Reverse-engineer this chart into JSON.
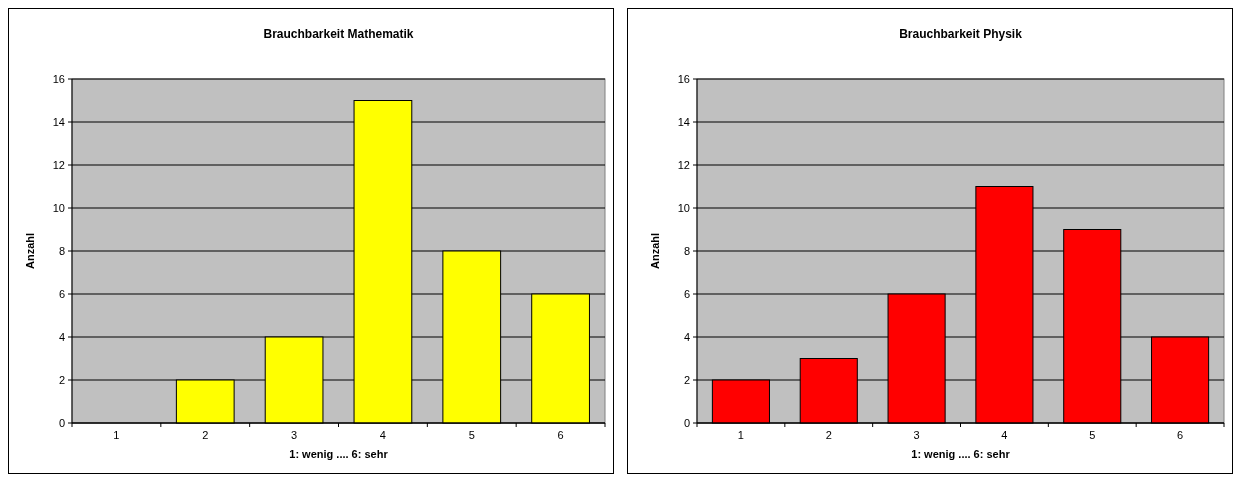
{
  "chart_data": [
    {
      "type": "bar",
      "title": "Brauchbarkeit Mathematik",
      "xlabel": "1: wenig .... 6: sehr",
      "ylabel": "Anzahl",
      "categories": [
        "1",
        "2",
        "3",
        "4",
        "5",
        "6"
      ],
      "values": [
        0,
        2,
        4,
        15,
        8,
        6
      ],
      "color": "#ffff00",
      "ylim": [
        0,
        16
      ],
      "yticks": [
        0,
        2,
        4,
        6,
        8,
        10,
        12,
        14,
        16
      ],
      "grid": "y"
    },
    {
      "type": "bar",
      "title": "Brauchbarkeit Physik",
      "xlabel": "1: wenig .... 6: sehr",
      "ylabel": "Anzahl",
      "categories": [
        "1",
        "2",
        "3",
        "4",
        "5",
        "6"
      ],
      "values": [
        2,
        3,
        6,
        11,
        9,
        4
      ],
      "color": "#ff0000",
      "ylim": [
        0,
        16
      ],
      "yticks": [
        0,
        2,
        4,
        6,
        8,
        10,
        12,
        14,
        16
      ],
      "grid": "y"
    }
  ]
}
